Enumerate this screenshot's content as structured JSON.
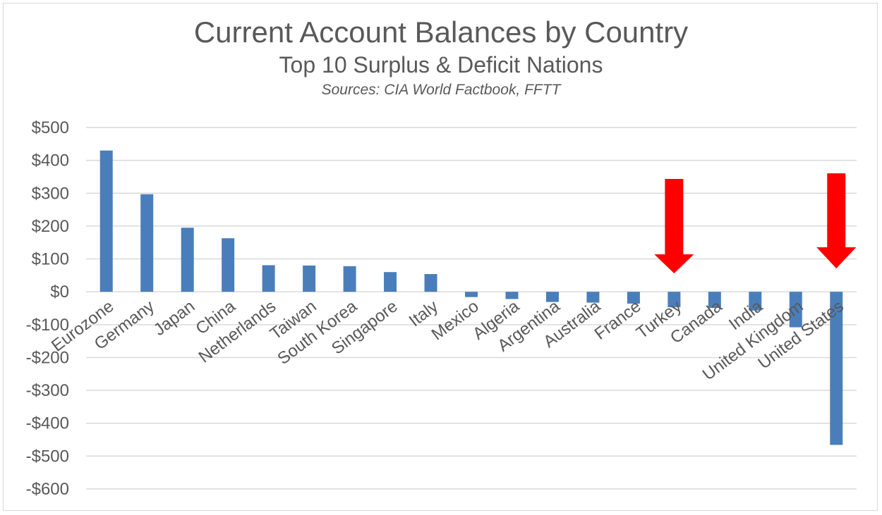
{
  "chart_data": {
    "type": "bar",
    "title": "Current Account Balances by Country",
    "subtitle": "Top 10 Surplus & Deficit Nations",
    "source": "Sources: CIA World Factbook, FFTT",
    "categories": [
      "Eurozone",
      "Germany",
      "Japan",
      "China",
      "Netherlands",
      "Taiwan",
      "South Korea",
      "Singapore",
      "Italy",
      "Mexico",
      "Algeria",
      "Argentina",
      "Australia",
      "France",
      "Turkey",
      "Canada",
      "India",
      "United Kingdom",
      "United States"
    ],
    "values": [
      430,
      297,
      195,
      163,
      81,
      80,
      78,
      60,
      54,
      -16,
      -22,
      -31,
      -33,
      -36,
      -47,
      -49,
      -57,
      -108,
      -466
    ],
    "ylim": [
      -600,
      500
    ],
    "yticks": [
      500,
      400,
      300,
      200,
      100,
      0,
      -100,
      -200,
      -300,
      -400,
      -500,
      -600
    ],
    "ytick_labels": [
      "$500",
      "$400",
      "$300",
      "$200",
      "$100",
      "$0",
      "-$100",
      "-$200",
      "-$300",
      "-$400",
      "-$500",
      "-$600"
    ],
    "grid": true,
    "colors": {
      "bar": "#4a7ebb",
      "grid": "#d9d9d9",
      "arrow": "#ff0000",
      "text": "#595959"
    },
    "annotations": [
      {
        "type": "arrow",
        "color": "#ff0000",
        "points_to": "Turkey"
      },
      {
        "type": "arrow",
        "color": "#ff0000",
        "points_to": "United States"
      }
    ]
  }
}
